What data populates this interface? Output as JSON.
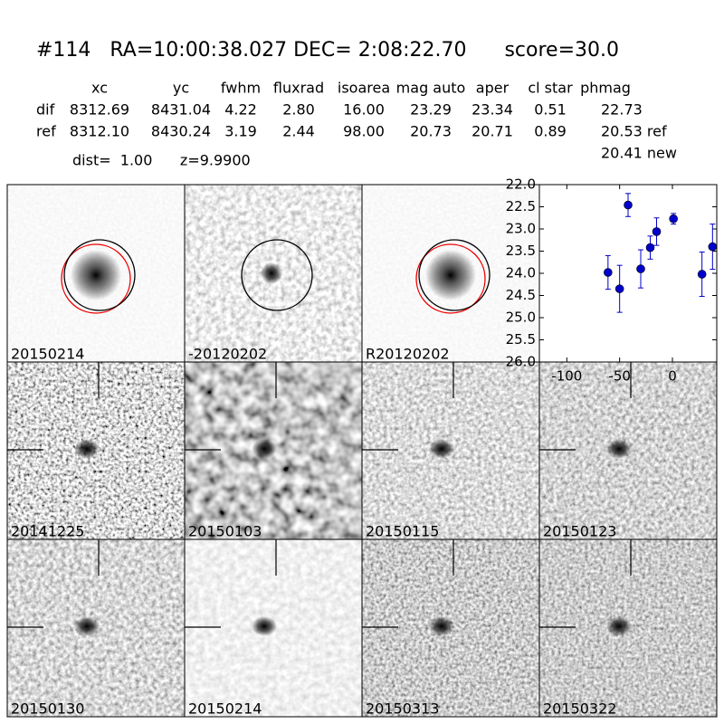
{
  "header": {
    "title": "#114   RA=10:00:38.027 DEC= 2:08:22.70      score=30.0",
    "dist_line": "dist=  1.00      z=9.9900"
  },
  "table": {
    "columns": [
      "xc",
      "yc",
      "fwhm",
      "fluxrad",
      "isoarea",
      "mag auto",
      "aper",
      "cl star",
      "phmag"
    ],
    "rows": [
      [
        "dif",
        "8312.69",
        "8431.04",
        "4.22",
        "2.80",
        "16.00",
        "23.29",
        "23.34",
        "0.51",
        "22.73"
      ],
      [
        "ref",
        "8312.10",
        "8430.24",
        "3.19",
        "2.44",
        "98.00",
        "20.73",
        "20.71",
        "0.89",
        "20.53 ref"
      ]
    ],
    "extra": "20.41 new"
  },
  "panels": [
    {
      "label": "20150214"
    },
    {
      "label": "-20120202"
    },
    {
      "label": "R20120202"
    },
    {
      "label": "20141225"
    },
    {
      "label": "20150103"
    },
    {
      "label": "20150115"
    },
    {
      "label": "20150123"
    },
    {
      "label": "20150130"
    },
    {
      "label": "20150214",
      "label_color": "#ff0000"
    },
    {
      "label": "20150313"
    },
    {
      "label": "20150322"
    }
  ],
  "chart_data": {
    "type": "errorbar",
    "color": "#0000cc",
    "x": [
      -61,
      -50,
      -42,
      -30,
      -21,
      -15,
      1,
      28,
      38
    ],
    "values": [
      23.98,
      24.35,
      22.46,
      23.9,
      23.42,
      23.06,
      22.77,
      24.02,
      23.4
    ],
    "errors": [
      0.38,
      0.53,
      0.26,
      0.43,
      0.26,
      0.31,
      0.12,
      0.5,
      0.51
    ],
    "xlim": [
      -126,
      42
    ],
    "xticks": [
      -100,
      -50,
      0
    ],
    "ylim": [
      26,
      22
    ],
    "yticks": [
      {
        "value": 22,
        "label": "22.0"
      },
      22.5,
      {
        "value": 23,
        "label": "23.0"
      },
      23.5,
      {
        "value": 24,
        "label": "24.0"
      },
      24.5,
      {
        "value": 25,
        "label": "25.0"
      },
      25.5,
      {
        "value": 26,
        "label": "26.0"
      }
    ]
  }
}
